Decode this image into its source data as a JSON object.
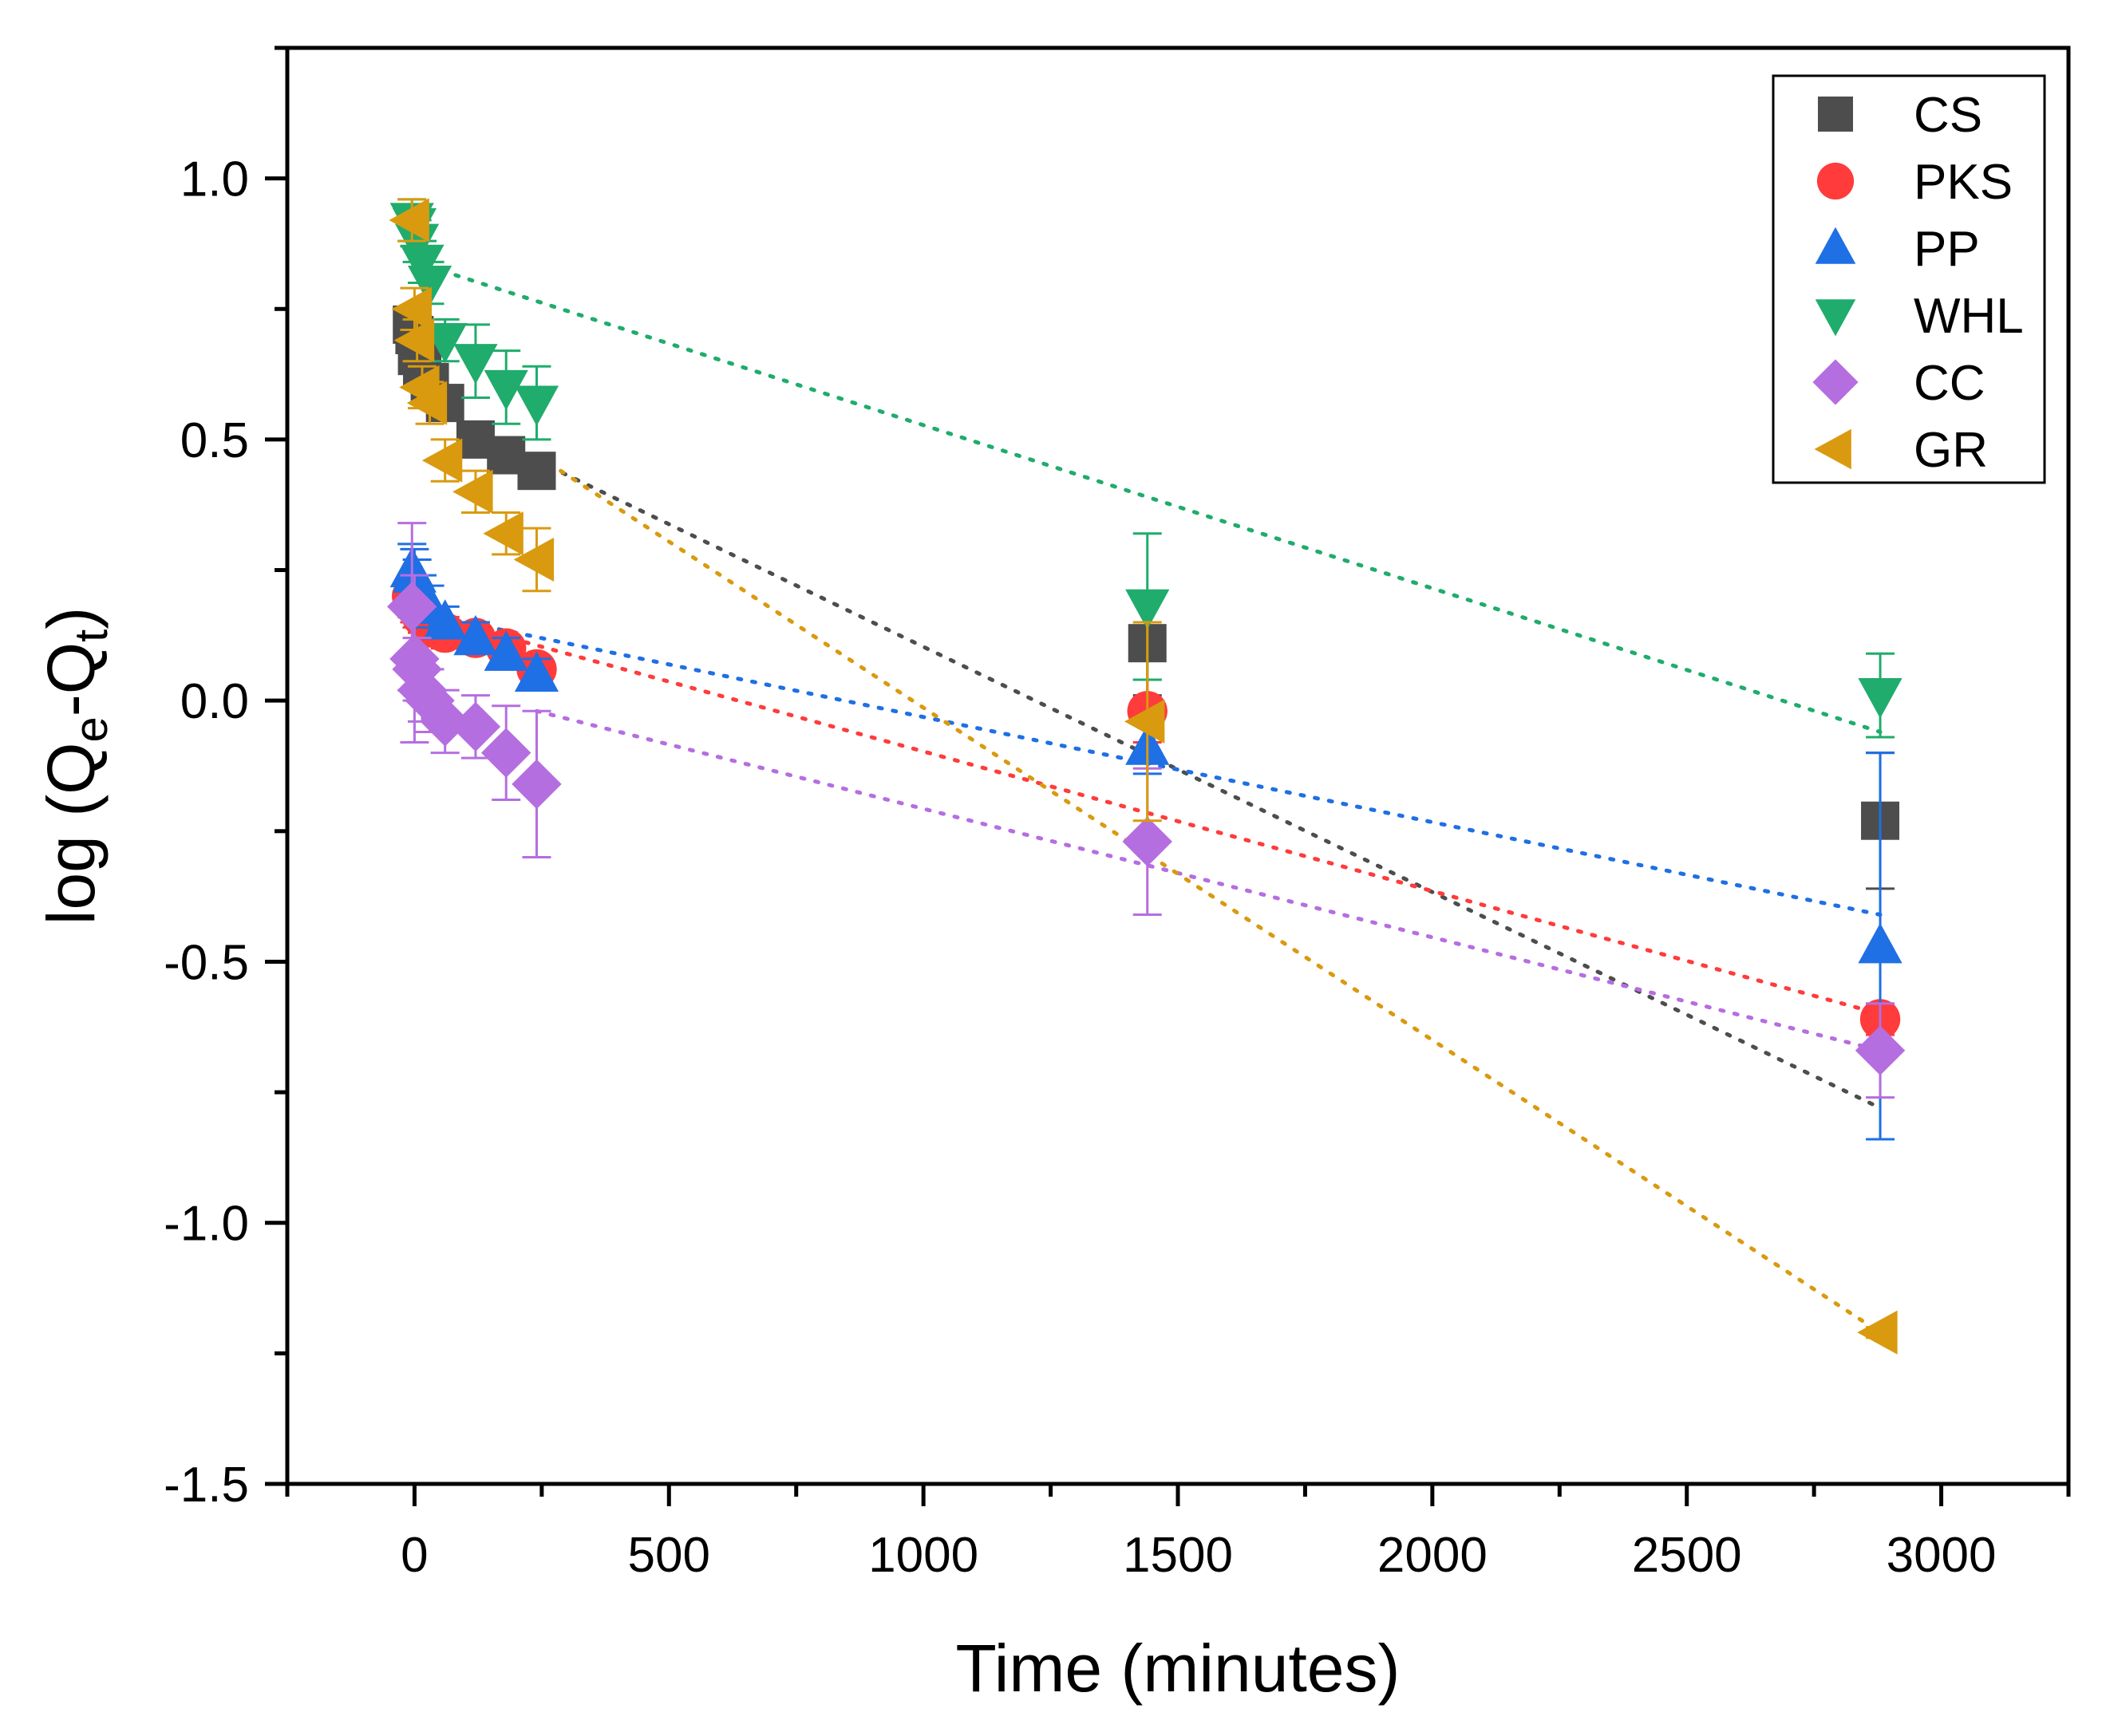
{
  "chart_data": {
    "type": "scatter",
    "xlabel": "Time (minutes)",
    "ylabel": {
      "base": "log (Q",
      "sub1": "e",
      "mid": "-Q",
      "sub2": "t",
      "end": ")"
    },
    "xlim": [
      -250,
      3250
    ],
    "ylim": [
      -1.5,
      1.25
    ],
    "xticks": [
      0,
      500,
      1000,
      1500,
      2000,
      2500,
      3000
    ],
    "xtick_labels": [
      "0",
      "500",
      "1000",
      "1500",
      "2000",
      "2500",
      "3000"
    ],
    "yticks": [
      -1.5,
      -1.0,
      -0.5,
      0.0,
      0.5,
      1.0
    ],
    "ytick_labels": [
      "-1.5",
      "-1.0",
      "-0.5",
      "0.0",
      "0.5",
      "1.0"
    ],
    "x_minor_step": 250,
    "y_minor_step": 0.25,
    "legend_position": "top-right",
    "series": [
      {
        "name": "CS",
        "marker": "square",
        "color": "#4d4d4d",
        "points": [
          [
            -5,
            0.72
          ],
          [
            0,
            0.7
          ],
          [
            5,
            0.66
          ],
          [
            15,
            0.64
          ],
          [
            30,
            0.61
          ],
          [
            60,
            0.57
          ],
          [
            120,
            0.5
          ],
          [
            180,
            0.47
          ],
          [
            240,
            0.44
          ],
          [
            1440,
            0.11
          ],
          [
            2880,
            -0.23
          ]
        ],
        "errors": [
          0.03,
          0.03,
          0.03,
          0.03,
          0.03,
          0.03,
          0.02,
          0.02,
          0.02,
          0.1,
          0.13
        ],
        "fit": [
          [
            240,
            0.46
          ],
          [
            2880,
            -0.78
          ]
        ]
      },
      {
        "name": "PKS",
        "marker": "circle",
        "color": "#ff3b3b",
        "points": [
          [
            -5,
            0.2
          ],
          [
            0,
            0.19
          ],
          [
            5,
            0.18
          ],
          [
            15,
            0.16
          ],
          [
            30,
            0.14
          ],
          [
            60,
            0.13
          ],
          [
            120,
            0.12
          ],
          [
            180,
            0.1
          ],
          [
            240,
            0.06
          ],
          [
            1440,
            -0.02
          ],
          [
            2880,
            -0.61
          ]
        ],
        "errors": [
          0.04,
          0.04,
          0.04,
          0.03,
          0.03,
          0.03,
          0.02,
          0.02,
          0.02,
          0.06,
          0.03
        ],
        "fit": [
          [
            0,
            0.17
          ],
          [
            2880,
            -0.6
          ]
        ]
      },
      {
        "name": "PP",
        "marker": "triangle-up",
        "color": "#1f6fe5",
        "points": [
          [
            -5,
            0.25
          ],
          [
            0,
            0.24
          ],
          [
            5,
            0.22
          ],
          [
            15,
            0.2
          ],
          [
            30,
            0.18
          ],
          [
            60,
            0.15
          ],
          [
            120,
            0.12
          ],
          [
            180,
            0.09
          ],
          [
            240,
            0.05
          ],
          [
            1440,
            -0.09
          ],
          [
            2880,
            -0.47
          ]
        ],
        "errors": [
          0.05,
          0.05,
          0.05,
          0.04,
          0.04,
          0.03,
          0.03,
          0.03,
          0.03,
          0.05,
          0.37
        ],
        "fit": [
          [
            0,
            0.17
          ],
          [
            2880,
            -0.41
          ]
        ]
      },
      {
        "name": "WHL",
        "marker": "triangle-down",
        "color": "#1fac6c",
        "points": [
          [
            -5,
            0.92
          ],
          [
            0,
            0.91
          ],
          [
            5,
            0.88
          ],
          [
            15,
            0.84
          ],
          [
            30,
            0.8
          ],
          [
            60,
            0.69
          ],
          [
            120,
            0.65
          ],
          [
            180,
            0.6
          ],
          [
            240,
            0.57
          ],
          [
            1440,
            0.18
          ],
          [
            2880,
            0.01
          ]
        ],
        "errors": [
          0.04,
          0.04,
          0.04,
          0.04,
          0.04,
          0.04,
          0.07,
          0.07,
          0.07,
          0.14,
          0.08
        ],
        "fit": [
          [
            0,
            0.84
          ],
          [
            2880,
            -0.06
          ]
        ]
      },
      {
        "name": "CC",
        "marker": "diamond",
        "color": "#b56ee0",
        "points": [
          [
            -5,
            0.18
          ],
          [
            0,
            0.08
          ],
          [
            5,
            0.06
          ],
          [
            15,
            0.02
          ],
          [
            30,
            0.0
          ],
          [
            60,
            -0.04
          ],
          [
            120,
            -0.05
          ],
          [
            180,
            -0.1
          ],
          [
            240,
            -0.16
          ],
          [
            1440,
            -0.27
          ],
          [
            2880,
            -0.67
          ]
        ],
        "errors": [
          0.16,
          0.16,
          0.06,
          0.06,
          0.06,
          0.06,
          0.06,
          0.09,
          0.14,
          0.14,
          0.09
        ],
        "fit": [
          [
            240,
            -0.02
          ],
          [
            2880,
            -0.67
          ]
        ]
      },
      {
        "name": "GR",
        "marker": "triangle-left",
        "color": "#d99a0f",
        "points": [
          [
            -5,
            0.92
          ],
          [
            0,
            0.75
          ],
          [
            5,
            0.69
          ],
          [
            15,
            0.6
          ],
          [
            30,
            0.57
          ],
          [
            60,
            0.46
          ],
          [
            120,
            0.4
          ],
          [
            180,
            0.32
          ],
          [
            240,
            0.27
          ],
          [
            1440,
            -0.04
          ],
          [
            2880,
            -1.21
          ]
        ],
        "errors": [
          0.04,
          0.04,
          0.04,
          0.04,
          0.04,
          0.04,
          0.04,
          0.04,
          0.06,
          0.19,
          0.01
        ],
        "fit": [
          [
            240,
            0.47
          ],
          [
            2880,
            -1.21
          ]
        ]
      }
    ]
  }
}
